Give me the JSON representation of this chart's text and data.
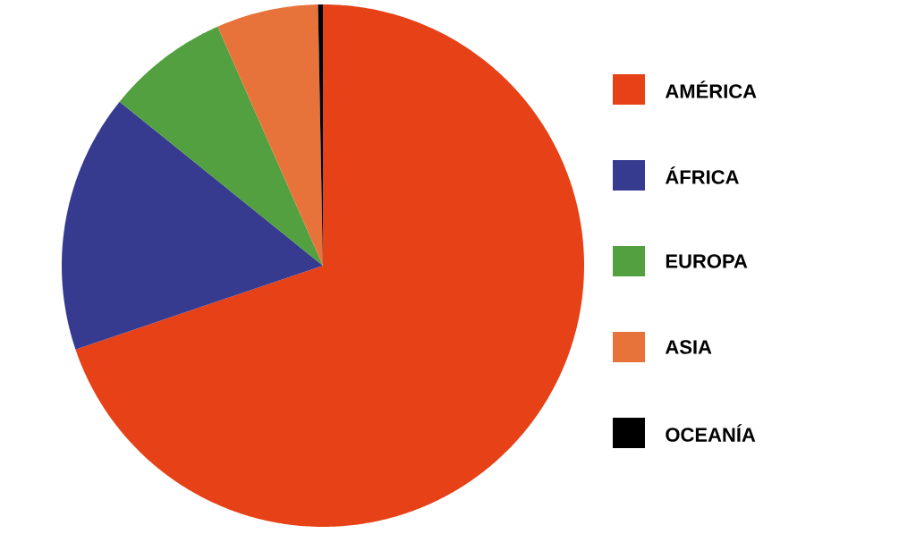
{
  "chart_data": {
    "type": "pie",
    "categories": [
      "AMÉRICA",
      "ÁFRICA",
      "EUROPA",
      "ASIA",
      "OCEANÍA"
    ],
    "values": [
      69.8,
      16.0,
      7.6,
      6.3,
      0.3
    ],
    "colors": [
      "#e64117",
      "#363b8f",
      "#52a03f",
      "#e8733a",
      "#000000"
    ],
    "legend": "right"
  }
}
